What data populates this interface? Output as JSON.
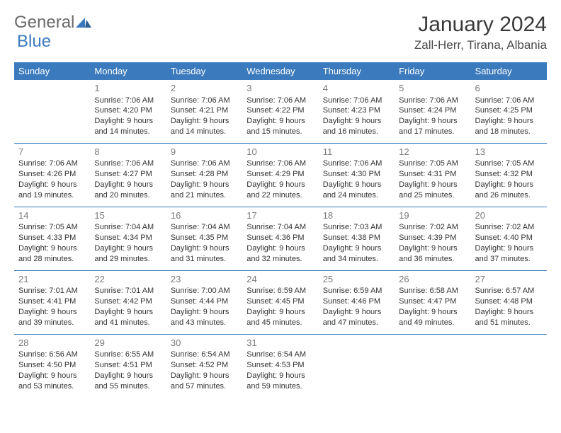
{
  "logo": {
    "general": "General",
    "blue": "Blue"
  },
  "title": "January 2024",
  "location": "Zall-Herr, Tirana, Albania",
  "colors": {
    "header_bg": "#3a7abd",
    "header_text": "#ffffff",
    "rule": "#3a7abd",
    "logo_gray": "#6a6a6a",
    "logo_blue": "#3a7abd"
  },
  "day_headers": [
    "Sunday",
    "Monday",
    "Tuesday",
    "Wednesday",
    "Thursday",
    "Friday",
    "Saturday"
  ],
  "weeks": [
    [
      null,
      {
        "n": "1",
        "sr": "7:06 AM",
        "ss": "4:20 PM",
        "dl1": "9 hours",
        "dl2": "and 14 minutes."
      },
      {
        "n": "2",
        "sr": "7:06 AM",
        "ss": "4:21 PM",
        "dl1": "9 hours",
        "dl2": "and 14 minutes."
      },
      {
        "n": "3",
        "sr": "7:06 AM",
        "ss": "4:22 PM",
        "dl1": "9 hours",
        "dl2": "and 15 minutes."
      },
      {
        "n": "4",
        "sr": "7:06 AM",
        "ss": "4:23 PM",
        "dl1": "9 hours",
        "dl2": "and 16 minutes."
      },
      {
        "n": "5",
        "sr": "7:06 AM",
        "ss": "4:24 PM",
        "dl1": "9 hours",
        "dl2": "and 17 minutes."
      },
      {
        "n": "6",
        "sr": "7:06 AM",
        "ss": "4:25 PM",
        "dl1": "9 hours",
        "dl2": "and 18 minutes."
      }
    ],
    [
      {
        "n": "7",
        "sr": "7:06 AM",
        "ss": "4:26 PM",
        "dl1": "9 hours",
        "dl2": "and 19 minutes."
      },
      {
        "n": "8",
        "sr": "7:06 AM",
        "ss": "4:27 PM",
        "dl1": "9 hours",
        "dl2": "and 20 minutes."
      },
      {
        "n": "9",
        "sr": "7:06 AM",
        "ss": "4:28 PM",
        "dl1": "9 hours",
        "dl2": "and 21 minutes."
      },
      {
        "n": "10",
        "sr": "7:06 AM",
        "ss": "4:29 PM",
        "dl1": "9 hours",
        "dl2": "and 22 minutes."
      },
      {
        "n": "11",
        "sr": "7:06 AM",
        "ss": "4:30 PM",
        "dl1": "9 hours",
        "dl2": "and 24 minutes."
      },
      {
        "n": "12",
        "sr": "7:05 AM",
        "ss": "4:31 PM",
        "dl1": "9 hours",
        "dl2": "and 25 minutes."
      },
      {
        "n": "13",
        "sr": "7:05 AM",
        "ss": "4:32 PM",
        "dl1": "9 hours",
        "dl2": "and 26 minutes."
      }
    ],
    [
      {
        "n": "14",
        "sr": "7:05 AM",
        "ss": "4:33 PM",
        "dl1": "9 hours",
        "dl2": "and 28 minutes."
      },
      {
        "n": "15",
        "sr": "7:04 AM",
        "ss": "4:34 PM",
        "dl1": "9 hours",
        "dl2": "and 29 minutes."
      },
      {
        "n": "16",
        "sr": "7:04 AM",
        "ss": "4:35 PM",
        "dl1": "9 hours",
        "dl2": "and 31 minutes."
      },
      {
        "n": "17",
        "sr": "7:04 AM",
        "ss": "4:36 PM",
        "dl1": "9 hours",
        "dl2": "and 32 minutes."
      },
      {
        "n": "18",
        "sr": "7:03 AM",
        "ss": "4:38 PM",
        "dl1": "9 hours",
        "dl2": "and 34 minutes."
      },
      {
        "n": "19",
        "sr": "7:02 AM",
        "ss": "4:39 PM",
        "dl1": "9 hours",
        "dl2": "and 36 minutes."
      },
      {
        "n": "20",
        "sr": "7:02 AM",
        "ss": "4:40 PM",
        "dl1": "9 hours",
        "dl2": "and 37 minutes."
      }
    ],
    [
      {
        "n": "21",
        "sr": "7:01 AM",
        "ss": "4:41 PM",
        "dl1": "9 hours",
        "dl2": "and 39 minutes."
      },
      {
        "n": "22",
        "sr": "7:01 AM",
        "ss": "4:42 PM",
        "dl1": "9 hours",
        "dl2": "and 41 minutes."
      },
      {
        "n": "23",
        "sr": "7:00 AM",
        "ss": "4:44 PM",
        "dl1": "9 hours",
        "dl2": "and 43 minutes."
      },
      {
        "n": "24",
        "sr": "6:59 AM",
        "ss": "4:45 PM",
        "dl1": "9 hours",
        "dl2": "and 45 minutes."
      },
      {
        "n": "25",
        "sr": "6:59 AM",
        "ss": "4:46 PM",
        "dl1": "9 hours",
        "dl2": "and 47 minutes."
      },
      {
        "n": "26",
        "sr": "6:58 AM",
        "ss": "4:47 PM",
        "dl1": "9 hours",
        "dl2": "and 49 minutes."
      },
      {
        "n": "27",
        "sr": "6:57 AM",
        "ss": "4:48 PM",
        "dl1": "9 hours",
        "dl2": "and 51 minutes."
      }
    ],
    [
      {
        "n": "28",
        "sr": "6:56 AM",
        "ss": "4:50 PM",
        "dl1": "9 hours",
        "dl2": "and 53 minutes."
      },
      {
        "n": "29",
        "sr": "6:55 AM",
        "ss": "4:51 PM",
        "dl1": "9 hours",
        "dl2": "and 55 minutes."
      },
      {
        "n": "30",
        "sr": "6:54 AM",
        "ss": "4:52 PM",
        "dl1": "9 hours",
        "dl2": "and 57 minutes."
      },
      {
        "n": "31",
        "sr": "6:54 AM",
        "ss": "4:53 PM",
        "dl1": "9 hours",
        "dl2": "and 59 minutes."
      },
      null,
      null,
      null
    ]
  ],
  "labels": {
    "sunrise": "Sunrise:",
    "sunset": "Sunset:",
    "daylight": "Daylight:"
  }
}
